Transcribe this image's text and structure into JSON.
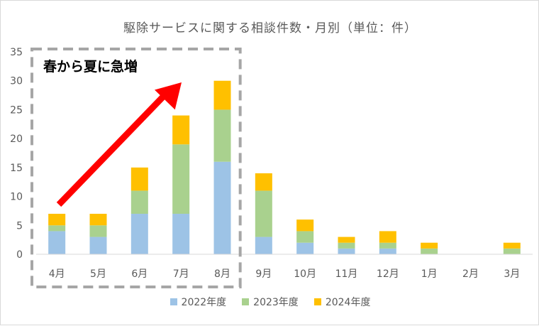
{
  "chart_data": {
    "type": "bar",
    "stacked": true,
    "title": "駆除サービスに関する相談件数・月別（単位：件）",
    "categories": [
      "4月",
      "5月",
      "6月",
      "7月",
      "8月",
      "9月",
      "10月",
      "11月",
      "12月",
      "1月",
      "2月",
      "3月"
    ],
    "series": [
      {
        "name": "2022年度",
        "color": "#9dc3e6",
        "values": [
          4,
          3,
          7,
          7,
          16,
          3,
          2,
          1,
          1,
          0,
          0,
          0
        ]
      },
      {
        "name": "2023年度",
        "color": "#a9d18e",
        "values": [
          1,
          2,
          4,
          12,
          9,
          8,
          2,
          1,
          1,
          1,
          0,
          1
        ]
      },
      {
        "name": "2024年度",
        "color": "#ffc000",
        "values": [
          2,
          2,
          4,
          5,
          5,
          3,
          2,
          1,
          2,
          1,
          0,
          1
        ]
      }
    ],
    "ylim": [
      0,
      35
    ],
    "yticks": [
      0,
      5,
      10,
      15,
      20,
      25,
      30,
      35
    ],
    "grid": false,
    "legend_position": "bottom",
    "annotation": {
      "text": "春から夏に急増",
      "highlight_range": [
        "4月",
        "8月"
      ],
      "arrow_color": "#ff0000"
    }
  }
}
